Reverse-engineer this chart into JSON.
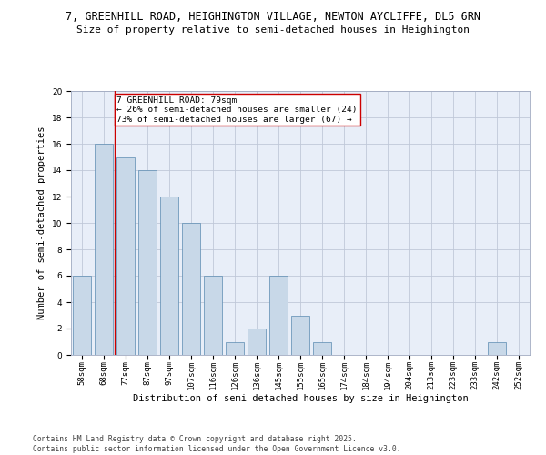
{
  "title_line1": "7, GREENHILL ROAD, HEIGHINGTON VILLAGE, NEWTON AYCLIFFE, DL5 6RN",
  "title_line2": "Size of property relative to semi-detached houses in Heighington",
  "xlabel": "Distribution of semi-detached houses by size in Heighington",
  "ylabel": "Number of semi-detached properties",
  "categories": [
    "58sqm",
    "68sqm",
    "77sqm",
    "87sqm",
    "97sqm",
    "107sqm",
    "116sqm",
    "126sqm",
    "136sqm",
    "145sqm",
    "155sqm",
    "165sqm",
    "174sqm",
    "184sqm",
    "194sqm",
    "204sqm",
    "213sqm",
    "223sqm",
    "233sqm",
    "242sqm",
    "252sqm"
  ],
  "values": [
    6,
    16,
    15,
    14,
    12,
    10,
    6,
    1,
    2,
    6,
    3,
    1,
    0,
    0,
    0,
    0,
    0,
    0,
    0,
    1,
    0
  ],
  "bar_color": "#c8d8e8",
  "bar_edge_color": "#5a8ab0",
  "highlight_index": 2,
  "highlight_line_color": "#cc0000",
  "annotation_text": "7 GREENHILL ROAD: 79sqm\n← 26% of semi-detached houses are smaller (24)\n73% of semi-detached houses are larger (67) →",
  "annotation_box_color": "#ffffff",
  "annotation_box_edge": "#cc0000",
  "ylim": [
    0,
    20
  ],
  "yticks": [
    0,
    2,
    4,
    6,
    8,
    10,
    12,
    14,
    16,
    18,
    20
  ],
  "grid_color": "#c0c8d8",
  "background_color": "#e8eef8",
  "footer": "Contains HM Land Registry data © Crown copyright and database right 2025.\nContains public sector information licensed under the Open Government Licence v3.0.",
  "title_fontsize": 8.5,
  "subtitle_fontsize": 8,
  "axis_label_fontsize": 7.5,
  "tick_fontsize": 6.5,
  "annotation_fontsize": 6.8,
  "footer_fontsize": 5.8
}
